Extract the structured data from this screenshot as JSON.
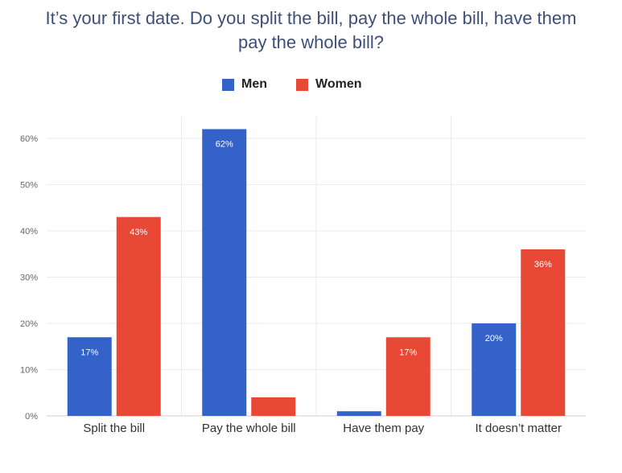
{
  "chart_data": {
    "type": "bar",
    "title": "It’s your first date. Do you split the bill, pay the whole bill, have them pay the whole bill?",
    "categories": [
      "Split the bill",
      "Pay the whole bill",
      "Have them pay",
      "It doesn’t matter"
    ],
    "series": [
      {
        "name": "Men",
        "color": "#3462c8",
        "values": [
          17,
          62,
          1,
          20
        ],
        "labels": [
          "17%",
          "62%",
          "",
          "20%"
        ]
      },
      {
        "name": "Women",
        "color": "#e84836",
        "values": [
          43,
          4,
          17,
          36
        ],
        "labels": [
          "43%",
          "",
          "17%",
          "36%"
        ]
      }
    ],
    "y_ticks": [
      0,
      10,
      20,
      30,
      40,
      50,
      60
    ],
    "y_tick_labels": [
      "0%",
      "10%",
      "20%",
      "30%",
      "40%",
      "50%",
      "60%"
    ],
    "ylim": [
      0,
      60
    ],
    "grid": true,
    "legend_position": "top-center"
  }
}
